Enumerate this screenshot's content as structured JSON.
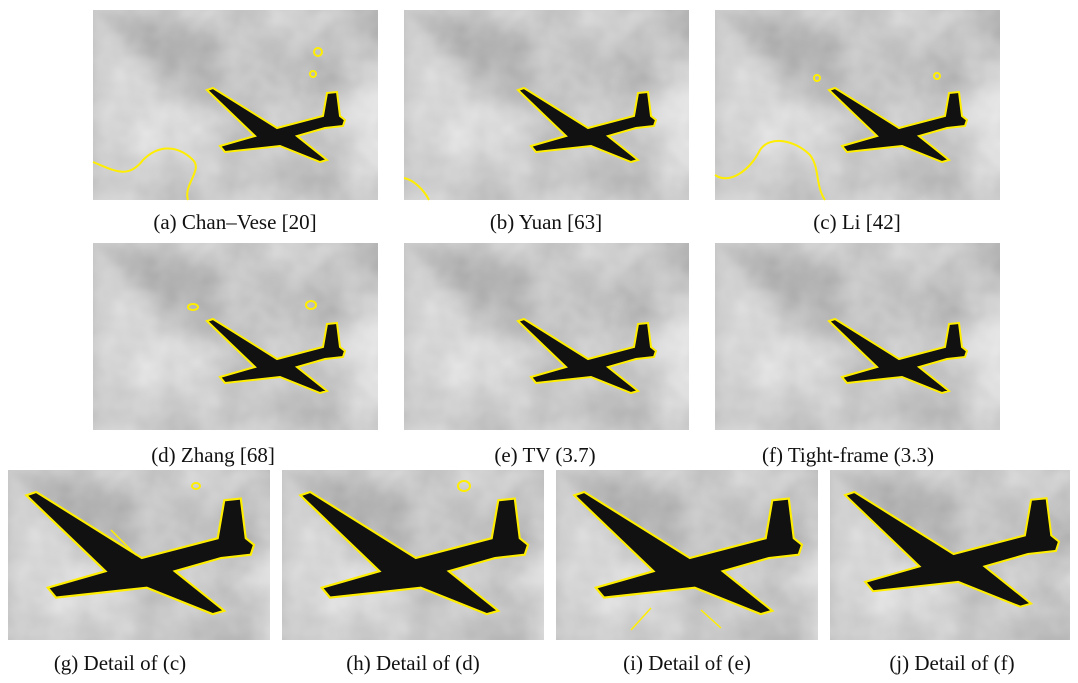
{
  "figure": {
    "panels": [
      {
        "caption": "(a) Chan–Vese [20]"
      },
      {
        "caption": "(b) Yuan [63]"
      },
      {
        "caption": "(c) Li [42]"
      },
      {
        "caption": "(d) Zhang [68]"
      },
      {
        "caption": "(e) TV (3.7)"
      },
      {
        "caption": "(f) Tight-frame (3.3)"
      },
      {
        "caption": "(g) Detail of (c)"
      },
      {
        "caption": "(h) Detail of (d)"
      },
      {
        "caption": "(i) Detail of (e)"
      },
      {
        "caption": "(j) Detail of (f)"
      }
    ]
  }
}
